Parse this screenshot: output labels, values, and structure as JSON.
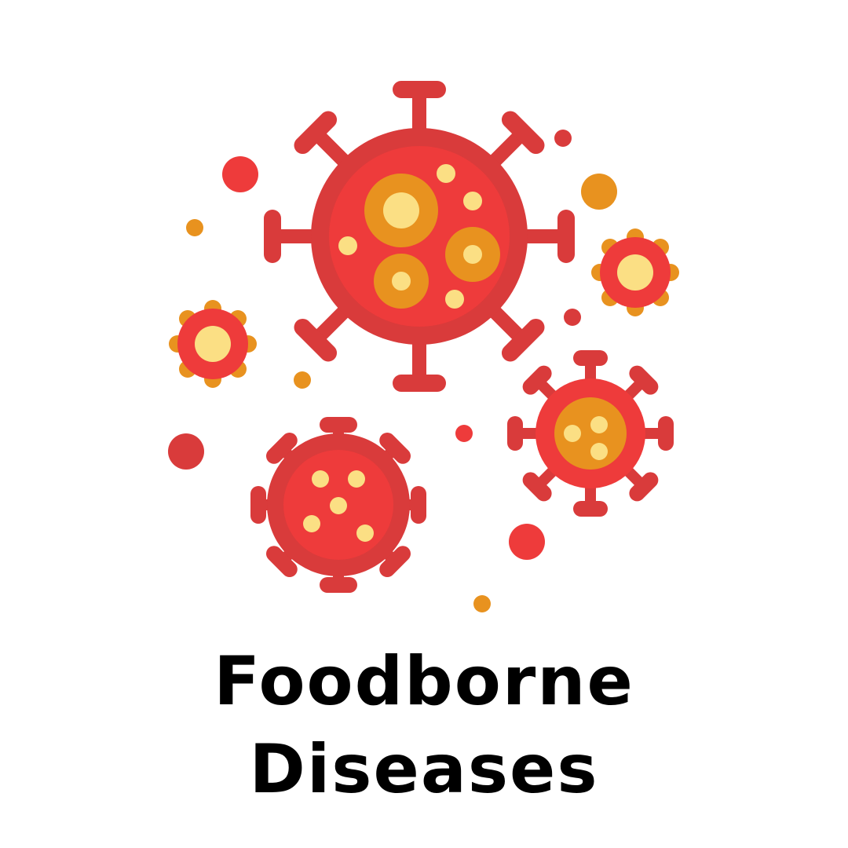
{
  "illustration": {
    "icon": "virus-cluster-icon",
    "colors": {
      "dark_red": "#d93b3b",
      "red": "#ee3b3b",
      "orange": "#e8921f",
      "pale_yellow": "#fbdf84",
      "text": "#000000",
      "background": "#ffffff"
    }
  },
  "title": {
    "line1": "Foodborne",
    "line2": "Diseases"
  }
}
